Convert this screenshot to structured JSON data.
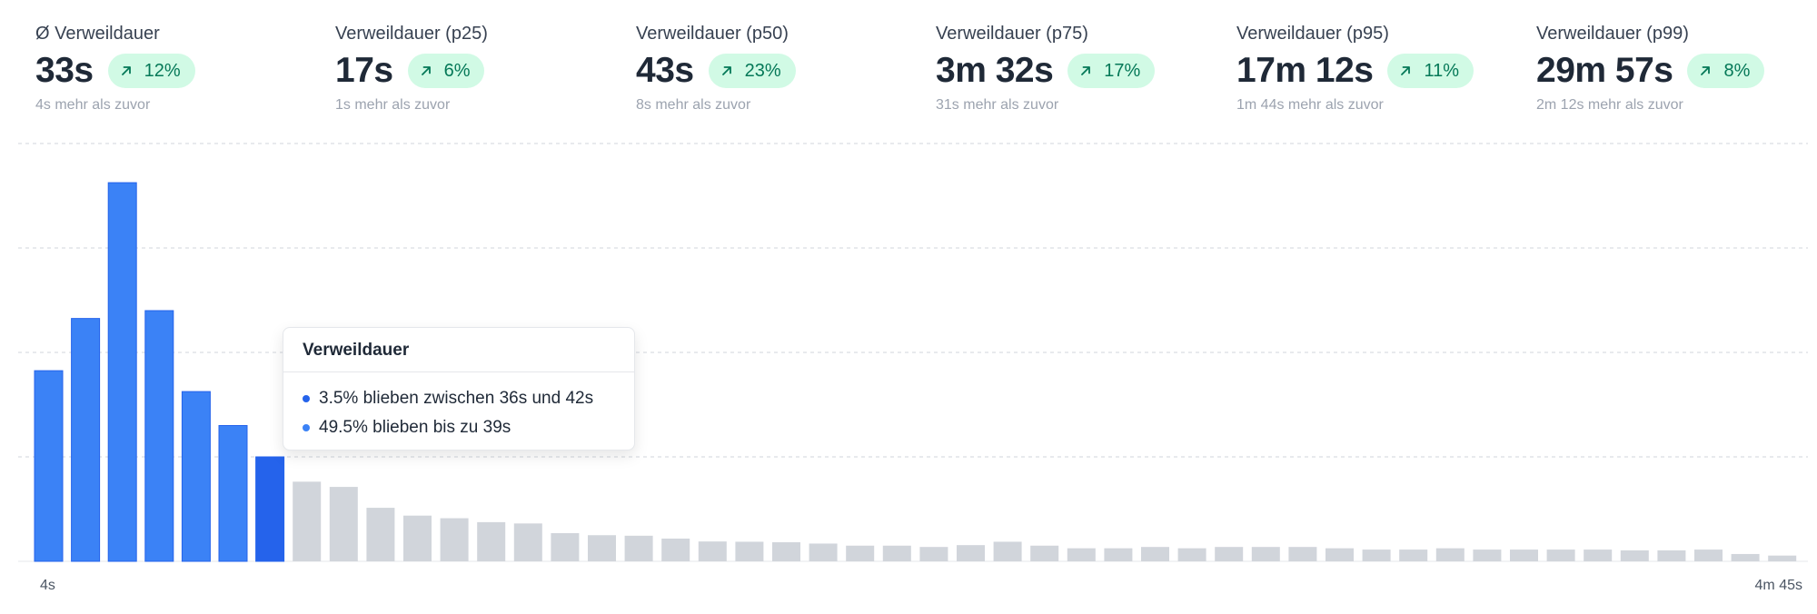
{
  "stats": [
    {
      "label": "Ø Verweildauer",
      "value": "33s",
      "change": "12%",
      "sub": "4s mehr als zuvor"
    },
    {
      "label": "Verweildauer (p25)",
      "value": "17s",
      "change": "6%",
      "sub": "1s mehr als zuvor"
    },
    {
      "label": "Verweildauer (p50)",
      "value": "43s",
      "change": "23%",
      "sub": "8s mehr als zuvor"
    },
    {
      "label": "Verweildauer (p75)",
      "value": "3m 32s",
      "change": "17%",
      "sub": "31s mehr als zuvor"
    },
    {
      "label": "Verweildauer (p95)",
      "value": "17m 12s",
      "change": "11%",
      "sub": "1m 44s mehr als zuvor"
    },
    {
      "label": "Verweildauer (p99)",
      "value": "29m 57s",
      "change": "8%",
      "sub": "2m 12s mehr als zuvor"
    }
  ],
  "colors": {
    "accent": "#3b82f6",
    "highlight": "#2563eb",
    "inactive": "#d1d5db",
    "badge_bg": "#d1fae5",
    "badge_text": "#047857"
  },
  "tooltip": {
    "title": "Verweildauer",
    "items": [
      {
        "text": "3.5% blieben zwischen 36s und 42s",
        "color": "#2563eb"
      },
      {
        "text": "49.5% blieben bis zu 39s",
        "color": "#3b82f6"
      }
    ]
  },
  "chart_data": {
    "type": "bar",
    "x_start_label": "4s",
    "x_end_label": "4m 45s",
    "values": [
      7.3,
      9.3,
      14.5,
      9.6,
      6.5,
      5.2,
      4.0,
      3.05,
      2.85,
      2.05,
      1.75,
      1.65,
      1.5,
      1.45,
      1.08,
      1.0,
      0.98,
      0.87,
      0.76,
      0.75,
      0.73,
      0.68,
      0.6,
      0.6,
      0.55,
      0.62,
      0.75,
      0.6,
      0.5,
      0.5,
      0.55,
      0.5,
      0.55,
      0.55,
      0.55,
      0.5,
      0.45,
      0.45,
      0.5,
      0.45,
      0.45,
      0.45,
      0.45,
      0.42,
      0.42,
      0.45,
      0.28,
      0.22
    ],
    "highlight_index": 6,
    "active_through_index": 6,
    "ylim": [
      0,
      16
    ],
    "grid": true
  }
}
